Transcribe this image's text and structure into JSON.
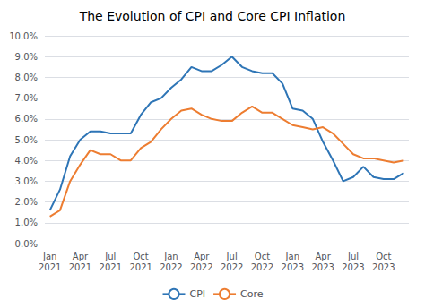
{
  "chart_data": {
    "type": "line",
    "title": "The Evolution of CPI and Core CPI Inflation",
    "categories": [
      "Jan\n2021",
      null,
      null,
      "Apr\n2021",
      null,
      null,
      "Jul\n2021",
      null,
      null,
      "Oct\n2021",
      null,
      null,
      "Jan\n2022",
      null,
      null,
      "Apr\n2022",
      null,
      null,
      "Jul\n2022",
      null,
      null,
      "Oct\n2022",
      null,
      null,
      "Jan\n2023",
      null,
      null,
      "Apr\n2023",
      null,
      null,
      "Jul\n2023",
      null,
      null,
      "Oct\n2023",
      null,
      null
    ],
    "series": [
      {
        "name": "CPI",
        "color": "#2E75B6",
        "values": [
          1.6,
          2.6,
          4.2,
          5.0,
          5.4,
          5.4,
          5.3,
          5.3,
          5.3,
          6.2,
          6.8,
          7.0,
          7.5,
          7.9,
          8.5,
          8.3,
          8.3,
          8.6,
          9.0,
          8.5,
          8.3,
          8.2,
          8.2,
          7.7,
          6.5,
          6.4,
          6.0,
          4.9,
          4.0,
          3.0,
          3.2,
          3.7,
          3.2,
          3.1,
          3.1,
          3.4
        ]
      },
      {
        "name": "Core",
        "color": "#ED7D31",
        "values": [
          1.3,
          1.6,
          3.0,
          3.8,
          4.5,
          4.3,
          4.3,
          4.0,
          4.0,
          4.6,
          4.9,
          5.5,
          6.0,
          6.4,
          6.5,
          6.2,
          6.0,
          5.9,
          5.9,
          6.3,
          6.6,
          6.3,
          6.3,
          6.0,
          5.7,
          5.6,
          5.5,
          5.6,
          5.3,
          4.8,
          4.3,
          4.1,
          4.1,
          4.0,
          3.9,
          4.0
        ]
      }
    ],
    "ylim": [
      0.0,
      10.0
    ],
    "yticks": [
      {
        "value": 0,
        "label": "0.0%"
      },
      {
        "value": 1,
        "label": "1.0%"
      },
      {
        "value": 2,
        "label": "2.0%"
      },
      {
        "value": 3,
        "label": "3.0%"
      },
      {
        "value": 4,
        "label": "4.0%"
      },
      {
        "value": 5,
        "label": "5.0%"
      },
      {
        "value": 6,
        "label": "6.0%"
      },
      {
        "value": 7,
        "label": "7.0%"
      },
      {
        "value": 8,
        "label": "8.0%"
      },
      {
        "value": 9,
        "label": "9.0%"
      },
      {
        "value": 10,
        "label": "10.0%"
      }
    ],
    "grid": true,
    "legend": "lower center"
  }
}
